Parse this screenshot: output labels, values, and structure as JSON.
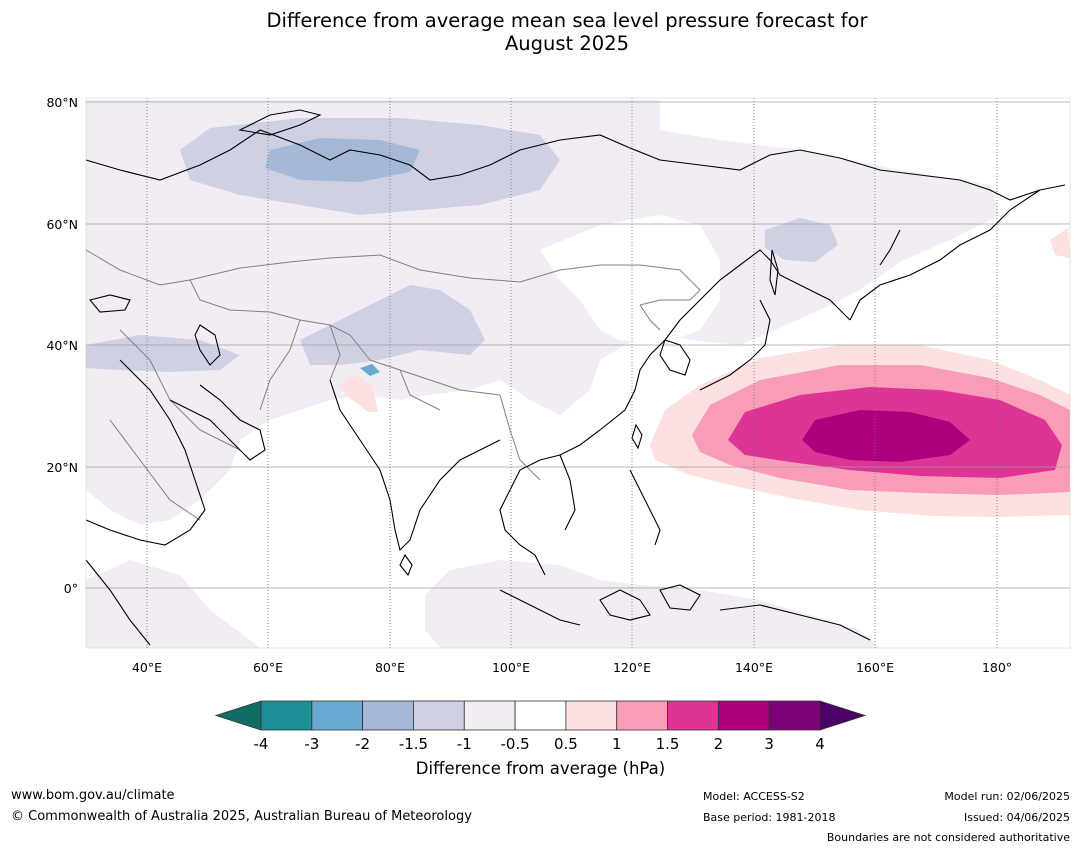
{
  "title_line1": "Difference from average mean sea level pressure forecast for",
  "title_line2": "August 2025",
  "lat_labels": [
    "80°N",
    "60°N",
    "40°N",
    "20°N",
    "0°"
  ],
  "lon_labels": [
    "40°E",
    "60°E",
    "80°E",
    "100°E",
    "120°E",
    "140°E",
    "160°E",
    "180°"
  ],
  "colorbar": {
    "ticks": [
      "-4",
      "-3",
      "-2",
      "-1.5",
      "-1",
      "-0.5",
      "0.5",
      "1",
      "1.5",
      "2",
      "3",
      "4"
    ],
    "colors": [
      "#0e6e63",
      "#1a8f95",
      "#6aa9d2",
      "#a6b8d8",
      "#d0d0e4",
      "#f2ecf5",
      "#ffffff",
      "#fde0e0",
      "#f89cb8",
      "#dc3596",
      "#ae007c",
      "#7c0076",
      "#4a0066"
    ],
    "label": "Difference from average (hPa)"
  },
  "footer": {
    "website": "www.bom.gov.au/climate",
    "copyright": "© Commonwealth of Australia 2025, Australian Bureau of Meteorology",
    "model": "Model: ACCESS-S2",
    "base_period": "Base period: 1981-2018",
    "model_run": "Model run: 02/06/2025",
    "issued": "Issued: 04/06/2025",
    "disclaimer": "Boundaries are not considered authoritative"
  },
  "map": {
    "projection": "Plate Carree",
    "lon_range": [
      30,
      192
    ],
    "lat_range": [
      -10,
      80
    ],
    "land_color": "#000000",
    "border_color": "#808080",
    "grid_color": "#a0a0a0"
  }
}
